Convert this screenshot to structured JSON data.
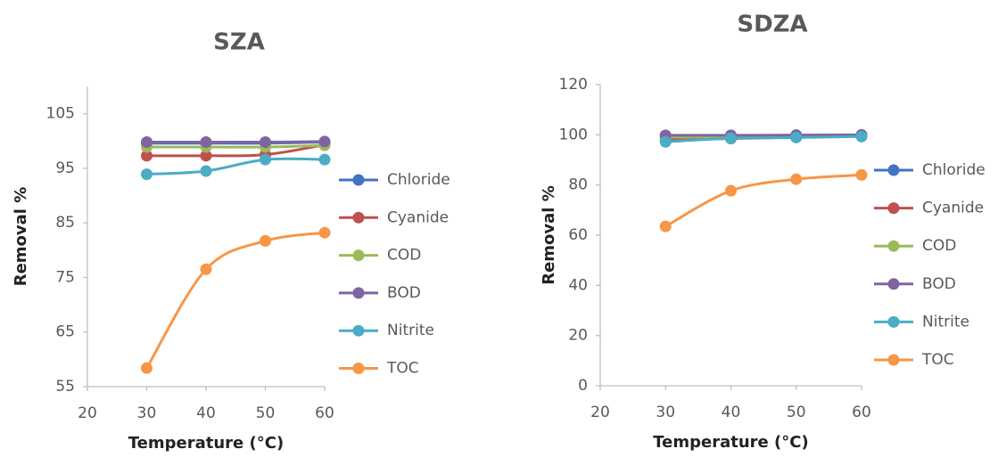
{
  "chart_data": [
    {
      "type": "line",
      "title": "SZA",
      "xlabel": "Temperature (°C)",
      "ylabel": "Removal %",
      "x": [
        30,
        40,
        50,
        60
      ],
      "xlim": [
        20,
        60
      ],
      "xticks": [
        20,
        30,
        40,
        50,
        60
      ],
      "ylim": [
        55,
        110
      ],
      "yticks": [
        55,
        65,
        75,
        85,
        95,
        105
      ],
      "smooth": true,
      "legend": "right",
      "series": [
        {
          "name": "Chloride",
          "color": "#4472c4",
          "values": [
            99.6,
            99.6,
            99.6,
            99.8
          ]
        },
        {
          "name": "Cyanide",
          "color": "#c0504d",
          "values": [
            97.3,
            97.3,
            97.5,
            99.3
          ]
        },
        {
          "name": "COD",
          "color": "#9bbb59",
          "values": [
            98.9,
            98.9,
            98.9,
            99.2
          ]
        },
        {
          "name": "BOD",
          "color": "#8064a2",
          "values": [
            99.8,
            99.8,
            99.8,
            99.9
          ]
        },
        {
          "name": "Nitrite",
          "color": "#4bacc6",
          "values": [
            93.9,
            94.5,
            96.6,
            96.6
          ]
        },
        {
          "name": "TOC",
          "color": "#f79646",
          "values": [
            58.4,
            76.5,
            81.7,
            83.2
          ]
        }
      ]
    },
    {
      "type": "line",
      "title": "SDZA",
      "xlabel": "Temperature (°C)",
      "ylabel": "Removal %",
      "x": [
        30,
        40,
        50,
        60
      ],
      "xlim": [
        20,
        60
      ],
      "xticks": [
        20,
        30,
        40,
        50,
        60
      ],
      "ylim": [
        0,
        120
      ],
      "yticks": [
        0,
        20,
        40,
        60,
        80,
        100,
        120
      ],
      "smooth": true,
      "legend": "right",
      "series": [
        {
          "name": "Chloride",
          "color": "#4472c4",
          "values": [
            99.5,
            99.6,
            99.7,
            99.9
          ]
        },
        {
          "name": "Cyanide",
          "color": "#c0504d",
          "values": [
            98,
            98.5,
            99,
            99.5
          ]
        },
        {
          "name": "COD",
          "color": "#9bbb59",
          "values": [
            99,
            99.3,
            99.5,
            99.7
          ]
        },
        {
          "name": "BOD",
          "color": "#8064a2",
          "values": [
            99.8,
            99.8,
            99.9,
            100
          ]
        },
        {
          "name": "Nitrite",
          "color": "#4bacc6",
          "values": [
            97.2,
            98.6,
            98.9,
            99.3
          ]
        },
        {
          "name": "TOC",
          "color": "#f79646",
          "values": [
            63.5,
            77.7,
            82.3,
            84
          ]
        }
      ]
    }
  ]
}
